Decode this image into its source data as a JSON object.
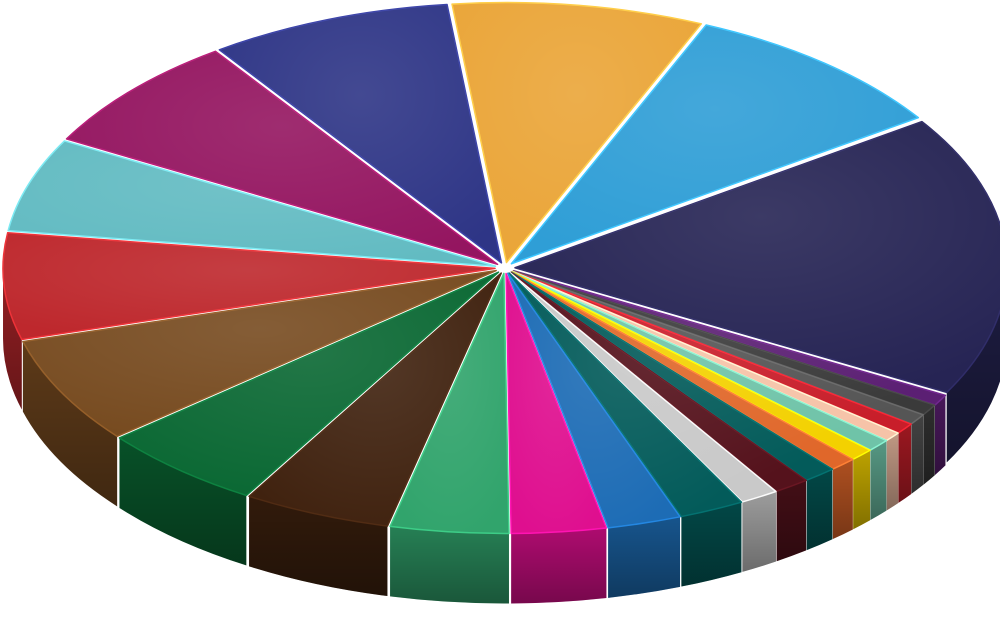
{
  "chart_data": {
    "type": "pie",
    "style": "3d-exploded",
    "legend": "none",
    "data_labels": false,
    "slices": [
      {
        "value": 18.0,
        "color": "#262454"
      },
      {
        "value": 0.7,
        "color": "#5b1f73"
      },
      {
        "value": 0.7,
        "color": "#3a3a3a"
      },
      {
        "value": 0.7,
        "color": "#555555"
      },
      {
        "value": 0.7,
        "color": "#c81e2a"
      },
      {
        "value": 0.6,
        "color": "#f6c3a8"
      },
      {
        "value": 0.8,
        "color": "#6fc3a8"
      },
      {
        "value": 0.8,
        "color": "#f3d100"
      },
      {
        "value": 0.9,
        "color": "#e0672a"
      },
      {
        "value": 1.1,
        "color": "#035b5a"
      },
      {
        "value": 1.2,
        "color": "#55121c"
      },
      {
        "value": 1.3,
        "color": "#c9c9c9"
      },
      {
        "value": 2.2,
        "color": "#035b5a"
      },
      {
        "value": 2.5,
        "color": "#1d6cb5"
      },
      {
        "value": 3.2,
        "color": "#df0f8f"
      },
      {
        "value": 4.0,
        "color": "#31a46c"
      },
      {
        "value": 5.0,
        "color": "#40220f"
      },
      {
        "value": 5.6,
        "color": "#0a6833"
      },
      {
        "value": 6.8,
        "color": "#774b20"
      },
      {
        "value": 6.8,
        "color": "#be282d"
      },
      {
        "value": 6.0,
        "color": "#62bbc2"
      },
      {
        "value": 7.5,
        "color": "#941560"
      },
      {
        "value": 8.2,
        "color": "#2e3586"
      },
      {
        "value": 8.5,
        "color": "#eaa538"
      },
      {
        "value": 9.3,
        "color": "#2f9ed6"
      }
    ]
  }
}
